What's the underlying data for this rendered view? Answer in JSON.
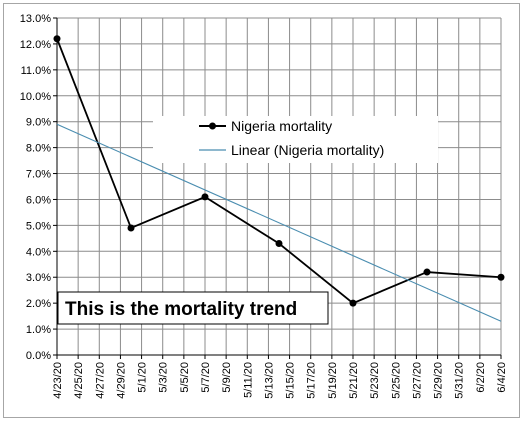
{
  "chart_data": {
    "type": "line",
    "title": "",
    "xlabel": "",
    "ylabel": "",
    "ylim": [
      0.0,
      13.0
    ],
    "y_ticks": [
      "0.0%",
      "1.0%",
      "2.0%",
      "3.0%",
      "4.0%",
      "5.0%",
      "6.0%",
      "7.0%",
      "8.0%",
      "9.0%",
      "10.0%",
      "11.0%",
      "12.0%",
      "13.0%"
    ],
    "x_ticks": [
      "4/23/20",
      "4/25/20",
      "4/27/20",
      "4/29/20",
      "5/1/20",
      "5/3/20",
      "5/5/20",
      "5/7/20",
      "5/9/20",
      "5/11/20",
      "5/13/20",
      "5/15/20",
      "5/17/20",
      "5/19/20",
      "5/21/20",
      "5/23/20",
      "5/25/20",
      "5/27/20",
      "5/29/20",
      "5/31/20",
      "6/2/20",
      "6/4/20"
    ],
    "grid": true,
    "series": [
      {
        "name": "Nigeria mortality",
        "color": "#000000",
        "marker": "circle",
        "points": [
          {
            "x": "4/23/20",
            "y": 12.2
          },
          {
            "x": "4/30/20",
            "y": 4.9
          },
          {
            "x": "5/7/20",
            "y": 6.1
          },
          {
            "x": "5/14/20",
            "y": 4.3
          },
          {
            "x": "5/21/20",
            "y": 2.0
          },
          {
            "x": "5/28/20",
            "y": 3.2
          },
          {
            "x": "6/4/20",
            "y": 3.0
          }
        ]
      },
      {
        "name": "Linear (Nigeria mortality)",
        "color": "#4a8db0",
        "marker": "none",
        "trendline": true,
        "points": [
          {
            "x": "4/23/20",
            "y": 8.9
          },
          {
            "x": "6/4/20",
            "y": 1.3
          }
        ]
      }
    ],
    "legend_position": "top-right",
    "annotation": "This is the mortality trend"
  }
}
